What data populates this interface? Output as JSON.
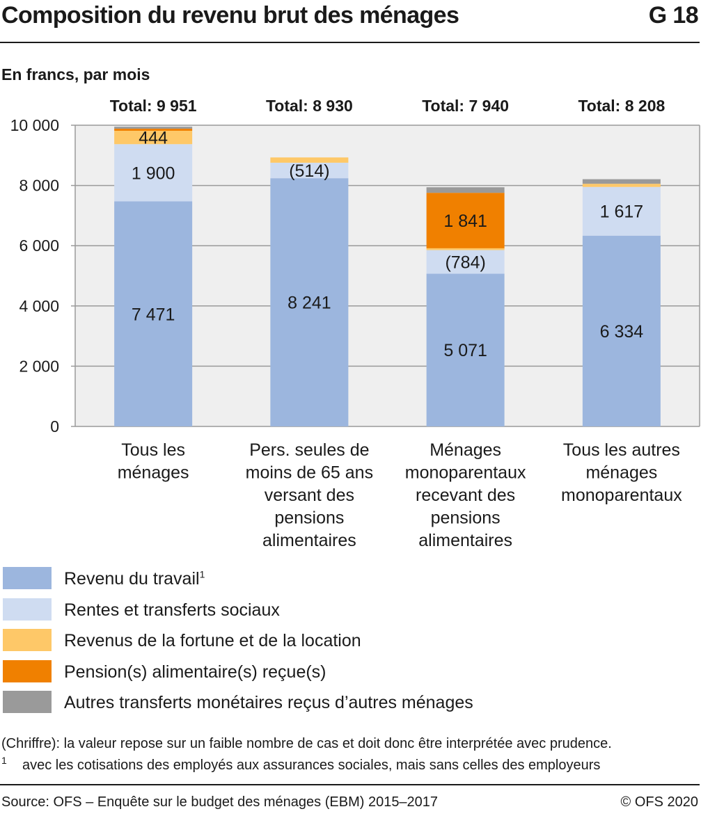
{
  "header": {
    "title": "Composition du revenu brut des ménages",
    "figure_number": "G 18"
  },
  "chart_data": {
    "type": "bar",
    "stacked": true,
    "subtitle": "En francs, par mois",
    "categories": [
      [
        "Tous les",
        "ménages"
      ],
      [
        "Pers. seules de",
        "moins de 65 ans",
        "versant des",
        "pensions",
        "alimentaires"
      ],
      [
        "Ménages",
        "monoparentaux",
        "recevant des",
        "pensions",
        "alimentaires"
      ],
      [
        "Tous les autres",
        "ménages",
        "monoparentaux"
      ]
    ],
    "totals": [
      "Total: 9 951",
      "Total: 8 930",
      "Total: 7 940",
      "Total: 8 208"
    ],
    "series": [
      {
        "name": "Revenu du travail",
        "footnote": "1",
        "color": "#9cb6de",
        "values": [
          7471,
          8241,
          5071,
          6334
        ],
        "labels": [
          "7 471",
          "8 241",
          "5 071",
          "6 334"
        ]
      },
      {
        "name": "Rentes et transferts sociaux",
        "color": "#cfdcf1",
        "values": [
          1900,
          514,
          784,
          1617
        ],
        "labels": [
          "1 900",
          "(514)",
          "(784)",
          "1 617"
        ]
      },
      {
        "name": "Revenus de la fortune et de la location",
        "color": "#fec868",
        "values": [
          444,
          175,
          60,
          105
        ],
        "labels": [
          "444",
          "",
          "",
          ""
        ]
      },
      {
        "name": "Pension(s) alimentaire(s) reçue(s)",
        "color": "#f08000",
        "values": [
          70,
          0,
          1841,
          0
        ],
        "labels": [
          "",
          "",
          "1 841",
          ""
        ]
      },
      {
        "name": "Autres transferts monétaires reçus d’autres ménages",
        "color": "#9a9a9a",
        "values": [
          66,
          0,
          184,
          152
        ],
        "labels": [
          "",
          "",
          "",
          ""
        ]
      }
    ],
    "ylim": [
      0,
      10000
    ],
    "yticks": [
      0,
      2000,
      4000,
      6000,
      8000,
      10000
    ],
    "ytick_labels": [
      "0",
      "2 000",
      "4 000",
      "6 000",
      "8 000",
      "10 000"
    ],
    "grid": true,
    "legend_position": "bottom"
  },
  "notes": {
    "small_sample": "(Chriffre): la valeur repose sur un faible nombre de cas et doit donc être interprétée avec prudence.",
    "footnote_mark": "1",
    "footnote_text": "avec les cotisations des employés aux assurances sociales, mais sans celles des employeurs"
  },
  "footer": {
    "source": "Source: OFS – Enquête sur le budget des ménages (EBM) 2015–2017",
    "copyright": "© OFS 2020"
  }
}
